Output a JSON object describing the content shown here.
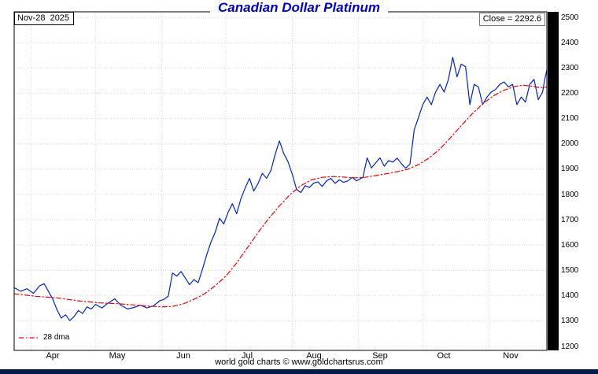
{
  "header": {
    "title": "Canadian Dollar Platinum",
    "date_label": "Nov-28  2025",
    "close_label": "Close = 2292.6"
  },
  "legend": {
    "dma_label": "28 dma"
  },
  "footer": {
    "text": "world gold charts © www.goldchartsrus.com"
  },
  "colors": {
    "title": "#0000cc",
    "grid": "#d9d9d9",
    "border": "#000000",
    "axis_strip": "#000000",
    "bottom_bar": "#001a4d"
  },
  "chart_data": {
    "type": "line",
    "title": "Canadian Dollar Platinum",
    "ylabel": "",
    "xlabel": "",
    "ylim": [
      1200,
      2500
    ],
    "y_ticks": [
      1200,
      1300,
      1400,
      1500,
      1600,
      1700,
      1800,
      1900,
      2000,
      2100,
      2200,
      2300,
      2400,
      2500
    ],
    "x_axis": {
      "unit": "days from late-Mar 2025 to Nov-28 2025",
      "total_days": 249,
      "months": [
        {
          "label": "Apr",
          "start_day": 8
        },
        {
          "label": "May",
          "start_day": 38
        },
        {
          "label": "Jun",
          "start_day": 69
        },
        {
          "label": "Jul",
          "start_day": 99
        },
        {
          "label": "Aug",
          "start_day": 130
        },
        {
          "label": "Sep",
          "start_day": 161
        },
        {
          "label": "Oct",
          "start_day": 191
        },
        {
          "label": "Nov",
          "start_day": 222
        }
      ]
    },
    "close_value": 2292.6,
    "series": [
      {
        "name": "Canadian Dollar Platinum price",
        "color": "#0022cc",
        "style": "solid",
        "points": [
          [
            0,
            1432
          ],
          [
            3,
            1418
          ],
          [
            6,
            1428
          ],
          [
            9,
            1410
          ],
          [
            12,
            1440
          ],
          [
            14,
            1448
          ],
          [
            16,
            1418
          ],
          [
            18,
            1388
          ],
          [
            20,
            1345
          ],
          [
            22,
            1312
          ],
          [
            24,
            1325
          ],
          [
            26,
            1302
          ],
          [
            28,
            1318
          ],
          [
            30,
            1342
          ],
          [
            32,
            1330
          ],
          [
            34,
            1356
          ],
          [
            36,
            1348
          ],
          [
            38,
            1366
          ],
          [
            41,
            1352
          ],
          [
            44,
            1372
          ],
          [
            47,
            1388
          ],
          [
            50,
            1362
          ],
          [
            53,
            1348
          ],
          [
            56,
            1354
          ],
          [
            59,
            1363
          ],
          [
            62,
            1352
          ],
          [
            65,
            1360
          ],
          [
            68,
            1380
          ],
          [
            70,
            1386
          ],
          [
            72,
            1398
          ],
          [
            74,
            1490
          ],
          [
            76,
            1478
          ],
          [
            78,
            1496
          ],
          [
            80,
            1470
          ],
          [
            82,
            1444
          ],
          [
            84,
            1464
          ],
          [
            86,
            1452
          ],
          [
            88,
            1505
          ],
          [
            90,
            1562
          ],
          [
            92,
            1612
          ],
          [
            94,
            1652
          ],
          [
            96,
            1706
          ],
          [
            98,
            1684
          ],
          [
            100,
            1730
          ],
          [
            102,
            1764
          ],
          [
            104,
            1724
          ],
          [
            106,
            1784
          ],
          [
            108,
            1826
          ],
          [
            110,
            1864
          ],
          [
            112,
            1814
          ],
          [
            114,
            1844
          ],
          [
            116,
            1884
          ],
          [
            118,
            1864
          ],
          [
            120,
            1895
          ],
          [
            122,
            1958
          ],
          [
            124,
            2012
          ],
          [
            126,
            1962
          ],
          [
            128,
            1930
          ],
          [
            130,
            1880
          ],
          [
            132,
            1820
          ],
          [
            134,
            1808
          ],
          [
            136,
            1835
          ],
          [
            138,
            1828
          ],
          [
            140,
            1845
          ],
          [
            142,
            1850
          ],
          [
            144,
            1832
          ],
          [
            146,
            1854
          ],
          [
            148,
            1864
          ],
          [
            150,
            1844
          ],
          [
            152,
            1858
          ],
          [
            154,
            1848
          ],
          [
            156,
            1854
          ],
          [
            158,
            1868
          ],
          [
            160,
            1854
          ],
          [
            163,
            1868
          ],
          [
            165,
            1945
          ],
          [
            167,
            1905
          ],
          [
            169,
            1925
          ],
          [
            171,
            1945
          ],
          [
            173,
            1912
          ],
          [
            175,
            1934
          ],
          [
            177,
            1928
          ],
          [
            179,
            1944
          ],
          [
            181,
            1922
          ],
          [
            183,
            1904
          ],
          [
            185,
            1920
          ],
          [
            187,
            2055
          ],
          [
            189,
            2105
          ],
          [
            191,
            2155
          ],
          [
            193,
            2185
          ],
          [
            195,
            2155
          ],
          [
            197,
            2205
          ],
          [
            199,
            2235
          ],
          [
            201,
            2205
          ],
          [
            203,
            2255
          ],
          [
            205,
            2342
          ],
          [
            207,
            2265
          ],
          [
            209,
            2315
          ],
          [
            211,
            2305
          ],
          [
            213,
            2155
          ],
          [
            215,
            2235
          ],
          [
            217,
            2225
          ],
          [
            219,
            2155
          ],
          [
            221,
            2185
          ],
          [
            223,
            2205
          ],
          [
            225,
            2215
          ],
          [
            227,
            2235
          ],
          [
            229,
            2245
          ],
          [
            231,
            2225
          ],
          [
            233,
            2235
          ],
          [
            235,
            2155
          ],
          [
            237,
            2185
          ],
          [
            239,
            2165
          ],
          [
            241,
            2235
          ],
          [
            243,
            2255
          ],
          [
            245,
            2175
          ],
          [
            247,
            2205
          ],
          [
            248,
            2255
          ],
          [
            249,
            2292.6
          ]
        ]
      },
      {
        "name": "28 dma",
        "color": "#ee0000",
        "style": "dashdot",
        "points": [
          [
            0,
            1408
          ],
          [
            10,
            1398
          ],
          [
            20,
            1392
          ],
          [
            30,
            1380
          ],
          [
            40,
            1372
          ],
          [
            50,
            1368
          ],
          [
            60,
            1361
          ],
          [
            69,
            1356
          ],
          [
            74,
            1358
          ],
          [
            79,
            1368
          ],
          [
            84,
            1386
          ],
          [
            89,
            1408
          ],
          [
            94,
            1440
          ],
          [
            99,
            1478
          ],
          [
            104,
            1530
          ],
          [
            109,
            1590
          ],
          [
            114,
            1650
          ],
          [
            119,
            1705
          ],
          [
            124,
            1755
          ],
          [
            129,
            1800
          ],
          [
            134,
            1835
          ],
          [
            139,
            1858
          ],
          [
            144,
            1868
          ],
          [
            149,
            1871
          ],
          [
            154,
            1869
          ],
          [
            159,
            1866
          ],
          [
            164,
            1868
          ],
          [
            169,
            1875
          ],
          [
            174,
            1882
          ],
          [
            179,
            1890
          ],
          [
            184,
            1900
          ],
          [
            189,
            1918
          ],
          [
            194,
            1945
          ],
          [
            199,
            1980
          ],
          [
            204,
            2025
          ],
          [
            209,
            2072
          ],
          [
            214,
            2118
          ],
          [
            219,
            2158
          ],
          [
            224,
            2190
          ],
          [
            229,
            2212
          ],
          [
            234,
            2227
          ],
          [
            238,
            2232
          ],
          [
            242,
            2228
          ],
          [
            246,
            2222
          ],
          [
            249,
            2224
          ]
        ]
      }
    ]
  }
}
